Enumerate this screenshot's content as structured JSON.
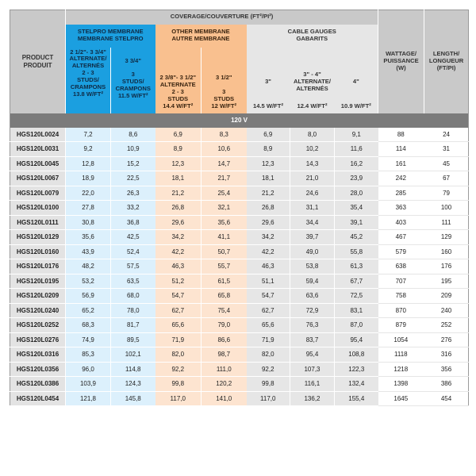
{
  "header": {
    "product": "PRODUCT\nPRODUIT",
    "coverage": "COVERAGE/COUVERTURE (FT²/PI²)",
    "stelpro": "STELPRO MEMBRANE\nMEMBRANE STELPRO",
    "other": "OTHER MEMBRANE\nAUTRE MEMBRANE",
    "cable": "CABLE GAUGES\nGABARITS",
    "wattage": "WATTAGE/\nPUISSANCE\n(W)",
    "length": "LENGTH/\nLONGUEUR\n(FT/PI)",
    "sub": [
      "2 1/2\"- 3 3/4\"\nALTERNATE/\nALTERNÉS\n2 - 3\nSTUDS/\nCRAMPONS\n13.8 W/FT²",
      "3 3/4\"\n\n3\nSTUDS/\nCRAMPONS\n11.5 W/FT²",
      "2 3/8\"- 3 1/2\"\nALTERNATE\n2 - 3\nSTUDS\n14.4 W/FT²",
      "3 1/2\"\n\n3\nSTUDS\n12 W/FT²"
    ],
    "cable_sub": [
      "3\"",
      "3\" - 4\"\nALTERNATE/\nALTERNÉS",
      "4\""
    ],
    "cable_watts": [
      "14.5 W/FT²",
      "12.4 W/FT²",
      "10.9 W/FT²"
    ],
    "voltage": "120 V"
  },
  "colors": {
    "stelpro": "#1b9fe0",
    "other": "#f9c08f",
    "band": "#7b7b7b"
  },
  "rows": [
    [
      "HGS120L0024",
      "7,2",
      "8,6",
      "6,9",
      "8,3",
      "6,9",
      "8,0",
      "9,1",
      "88",
      "24"
    ],
    [
      "HGS120L0031",
      "9,2",
      "10,9",
      "8,9",
      "10,6",
      "8,9",
      "10,2",
      "11,6",
      "114",
      "31"
    ],
    [
      "HGS120L0045",
      "12,8",
      "15,2",
      "12,3",
      "14,7",
      "12,3",
      "14,3",
      "16,2",
      "161",
      "45"
    ],
    [
      "HGS120L0067",
      "18,9",
      "22,5",
      "18,1",
      "21,7",
      "18,1",
      "21,0",
      "23,9",
      "242",
      "67"
    ],
    [
      "HGS120L0079",
      "22,0",
      "26,3",
      "21,2",
      "25,4",
      "21,2",
      "24,6",
      "28,0",
      "285",
      "79"
    ],
    [
      "HGS120L0100",
      "27,8",
      "33,2",
      "26,8",
      "32,1",
      "26,8",
      "31,1",
      "35,4",
      "363",
      "100"
    ],
    [
      "HGS120L0111",
      "30,8",
      "36,8",
      "29,6",
      "35,6",
      "29,6",
      "34,4",
      "39,1",
      "403",
      "111"
    ],
    [
      "HGS120L0129",
      "35,6",
      "42,5",
      "34,2",
      "41,1",
      "34,2",
      "39,7",
      "45,2",
      "467",
      "129"
    ],
    [
      "HGS120L0160",
      "43,9",
      "52,4",
      "42,2",
      "50,7",
      "42,2",
      "49,0",
      "55,8",
      "579",
      "160"
    ],
    [
      "HGS120L0176",
      "48,2",
      "57,5",
      "46,3",
      "55,7",
      "46,3",
      "53,8",
      "61,3",
      "638",
      "176"
    ],
    [
      "HGS120L0195",
      "53,2",
      "63,5",
      "51,2",
      "61,5",
      "51,1",
      "59,4",
      "67,7",
      "707",
      "195"
    ],
    [
      "HGS120L0209",
      "56,9",
      "68,0",
      "54,7",
      "65,8",
      "54,7",
      "63,6",
      "72,5",
      "758",
      "209"
    ],
    [
      "HGS120L0240",
      "65,2",
      "78,0",
      "62,7",
      "75,4",
      "62,7",
      "72,9",
      "83,1",
      "870",
      "240"
    ],
    [
      "HGS120L0252",
      "68,3",
      "81,7",
      "65,6",
      "79,0",
      "65,6",
      "76,3",
      "87,0",
      "879",
      "252"
    ],
    [
      "HGS120L0276",
      "74,9",
      "89,5",
      "71,9",
      "86,6",
      "71,9",
      "83,7",
      "95,4",
      "1054",
      "276"
    ],
    [
      "HGS120L0316",
      "85,3",
      "102,1",
      "82,0",
      "98,7",
      "82,0",
      "95,4",
      "108,8",
      "1118",
      "316"
    ],
    [
      "HGS120L0356",
      "96,0",
      "114,8",
      "92,2",
      "111,0",
      "92,2",
      "107,3",
      "122,3",
      "1218",
      "356"
    ],
    [
      "HGS120L0386",
      "103,9",
      "124,3",
      "99,8",
      "120,2",
      "99,8",
      "116,1",
      "132,4",
      "1398",
      "386"
    ],
    [
      "HGS120L0454",
      "121,8",
      "145,8",
      "117,0",
      "141,0",
      "117,0",
      "136,2",
      "155,4",
      "1645",
      "454"
    ]
  ]
}
